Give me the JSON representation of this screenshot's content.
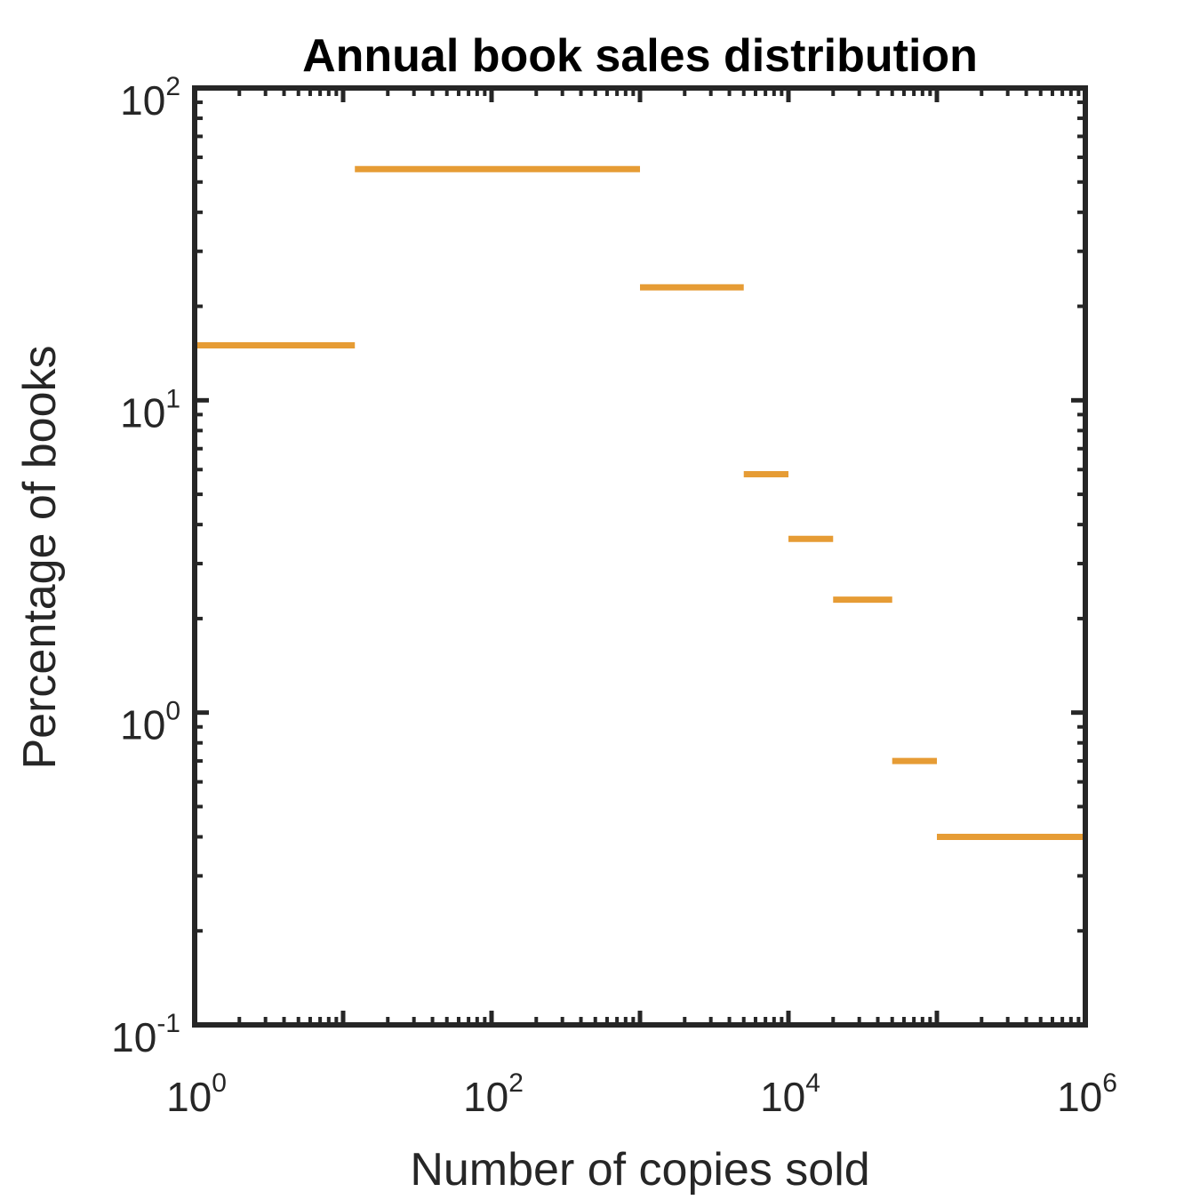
{
  "chart_data": {
    "type": "step",
    "title": "Annual book sales distribution",
    "xlabel": "Number of copies sold",
    "ylabel": "Percentage of books",
    "xscale": "log",
    "yscale": "log",
    "xlim": [
      1,
      1000000
    ],
    "ylim": [
      0.1,
      100
    ],
    "x_ticks": [
      {
        "base": "10",
        "exp": "0",
        "value": 1
      },
      {
        "base": "10",
        "exp": "2",
        "value": 100
      },
      {
        "base": "10",
        "exp": "4",
        "value": 10000
      },
      {
        "base": "10",
        "exp": "6",
        "value": 1000000
      }
    ],
    "y_ticks": [
      {
        "base": "10",
        "exp": "-1",
        "value": 0.1
      },
      {
        "base": "10",
        "exp": "0",
        "value": 1
      },
      {
        "base": "10",
        "exp": "1",
        "value": 10
      },
      {
        "base": "10",
        "exp": "2",
        "value": 100
      }
    ],
    "grid": false,
    "line_color": "#E69C35",
    "axis_color": "#262626",
    "segments": [
      {
        "x_start": 1,
        "x_end": 12,
        "y": 15
      },
      {
        "x_start": 12,
        "x_end": 1000,
        "y": 55
      },
      {
        "x_start": 1000,
        "x_end": 5000,
        "y": 23
      },
      {
        "x_start": 5000,
        "x_end": 10000,
        "y": 5.8
      },
      {
        "x_start": 10000,
        "x_end": 20000,
        "y": 3.6
      },
      {
        "x_start": 20000,
        "x_end": 50000,
        "y": 2.3
      },
      {
        "x_start": 50000,
        "x_end": 100000,
        "y": 0.7
      },
      {
        "x_start": 100000,
        "x_end": 1000000,
        "y": 0.4
      }
    ]
  }
}
